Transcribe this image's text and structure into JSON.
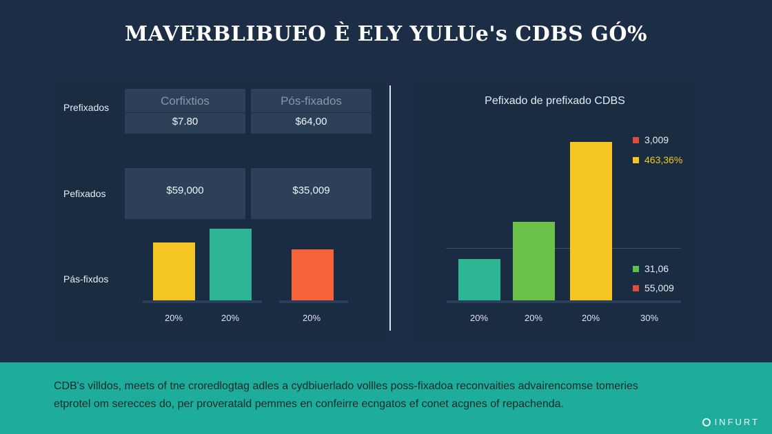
{
  "title": "MAVERBLIBUEO È ELY YULUe's CDBS GÓ%",
  "left": {
    "row_labels": [
      "Prefixados",
      "Pefixados",
      "Pás-fixdos"
    ],
    "cards_top": [
      {
        "head": "Corfixtios",
        "value": "$7.80"
      },
      {
        "head": "Pós-fixados",
        "value": "$64,00"
      }
    ],
    "cards_mid": [
      {
        "value": "$59,000"
      },
      {
        "value": "$35,009"
      }
    ]
  },
  "right": {
    "title": "Pefixado de prefixado CDBS",
    "legend": [
      {
        "label": "3,009",
        "color": "#e04b3a"
      },
      {
        "label": "463,36%",
        "color": "#f5c623"
      },
      {
        "label": "31,06",
        "color": "#5cc04a"
      },
      {
        "label": "55,009",
        "color": "#e04b3a"
      }
    ]
  },
  "footer": {
    "line1": "CDB's villdos, meets of tne croredlogtag adles a cydbiuerlado vollles poss-fixadoa reconvaities advairencomse tomeries",
    "line2": "etprotel om serecces do, per proveratald pemmes en confeirre ecngatos ef conet acgnes of repachenda.",
    "brand": "INFURT"
  },
  "chart_data": [
    {
      "type": "bar",
      "categories": [
        "20%",
        "20%",
        "20%"
      ],
      "series": [
        {
          "values": [
            42,
            52,
            0
          ],
          "colors": [
            "#f5c623",
            "#2eb593",
            "#f5633a"
          ]
        },
        {
          "values": [
            0,
            0,
            37
          ]
        }
      ],
      "bars": [
        {
          "category": "20%",
          "value": 42,
          "color": "#f5c623"
        },
        {
          "category": "20%",
          "value": 52,
          "color": "#2eb593"
        },
        {
          "category": "20%",
          "value": 37,
          "color": "#f5633a"
        }
      ]
    },
    {
      "type": "bar",
      "title": "Pefixado de prefixado CDBS",
      "categories": [
        "20%",
        "20%",
        "20%",
        "30%"
      ],
      "bars": [
        {
          "category": "20%",
          "value": 30,
          "color": "#2eb593"
        },
        {
          "category": "20%",
          "value": 57,
          "color": "#6cc148"
        },
        {
          "category": "20%",
          "value": 115,
          "color": "#f5c623"
        }
      ]
    }
  ]
}
